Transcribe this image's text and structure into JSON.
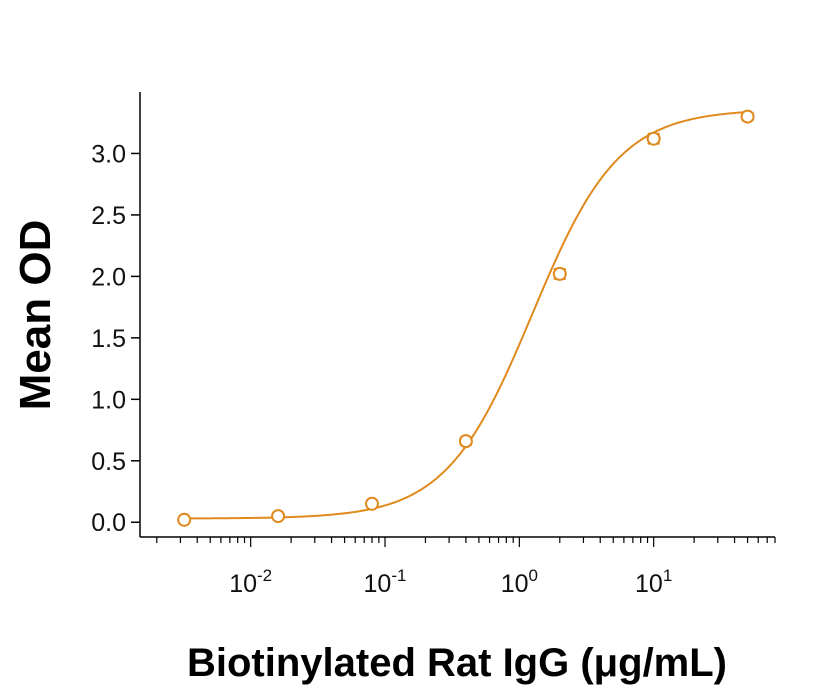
{
  "chart_data": {
    "type": "scatter",
    "xlabel": "Biotinylated Rat IgG (μg/mL)",
    "ylabel": "Mean OD",
    "xscale": "log",
    "xlim": [
      0.0015,
      80
    ],
    "ylim": [
      -0.12,
      3.5
    ],
    "x_ticks": [
      {
        "value": 0.01,
        "base": "10",
        "exp": "-2"
      },
      {
        "value": 0.1,
        "base": "10",
        "exp": "-1"
      },
      {
        "value": 1,
        "base": "10",
        "exp": "0"
      },
      {
        "value": 10,
        "base": "10",
        "exp": "1"
      }
    ],
    "y_ticks": [
      "0.0",
      "0.5",
      "1.0",
      "1.5",
      "2.0",
      "2.5",
      "3.0"
    ],
    "series": [
      {
        "color": "#E08A1E",
        "x": [
          0.0032,
          0.016,
          0.08,
          0.4,
          2,
          10,
          50
        ],
        "y": [
          0.02,
          0.05,
          0.15,
          0.66,
          2.02,
          3.12,
          3.3
        ],
        "error": [
          0.02,
          0.02,
          0.02,
          0.03,
          0.04,
          0.04,
          0.03
        ],
        "fit": {
          "bottom": 0.03,
          "top": 3.36,
          "ec50": 1.25,
          "hill": 1.35
        }
      }
    ],
    "grid": false,
    "legend": "none"
  }
}
